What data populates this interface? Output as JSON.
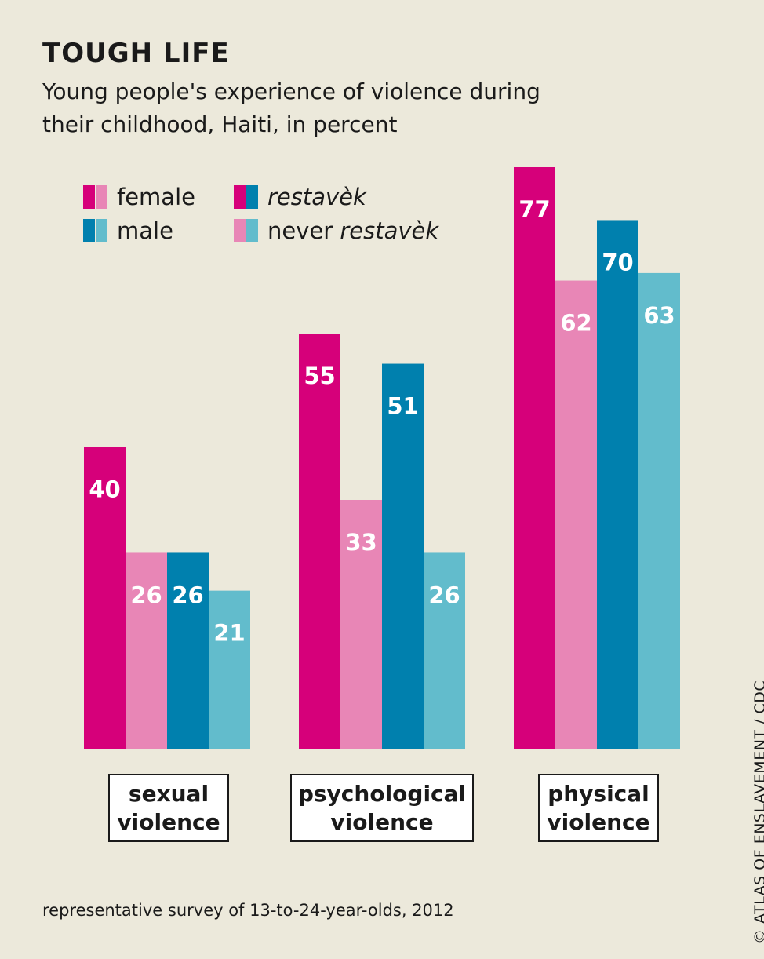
{
  "chart_data": {
    "type": "bar",
    "title": "TOUGH LIFE",
    "subtitle": "Young people's experience of violence during their childhood, Haiti, in percent",
    "categories": [
      [
        "sexual",
        "violence"
      ],
      [
        "psychological",
        "violence"
      ],
      [
        "physical",
        "violence"
      ]
    ],
    "series": [
      {
        "name": "female restavèk",
        "color": "#d6007a",
        "values": [
          40,
          55,
          77
        ]
      },
      {
        "name": "female never restavèk",
        "color": "#e886b6",
        "values": [
          26,
          33,
          62
        ]
      },
      {
        "name": "male restavèk",
        "color": "#0080ae",
        "values": [
          26,
          51,
          70
        ]
      },
      {
        "name": "male never restavèk",
        "color": "#62bccc",
        "values": [
          21,
          26,
          63
        ]
      }
    ],
    "ylim": [
      0,
      77
    ],
    "legend": {
      "position": "top-left",
      "items": [
        {
          "label": "female",
          "colors": [
            "#d6007a",
            "#e886b6"
          ]
        },
        {
          "label": "male",
          "colors": [
            "#0080ae",
            "#62bccc"
          ]
        },
        {
          "label": "restavèk",
          "italic": "restavèk",
          "colors": [
            "#d6007a",
            "#0080ae"
          ]
        },
        {
          "label": "never restavèk",
          "prefix": "never ",
          "italic": "restavèk",
          "colors": [
            "#e886b6",
            "#62bccc"
          ]
        }
      ]
    },
    "grid": false
  },
  "footnote": "representative survey of 13-to-24-year-olds, 2012",
  "credit": "© ATLAS OF ENSLAVEMENT / CDC"
}
